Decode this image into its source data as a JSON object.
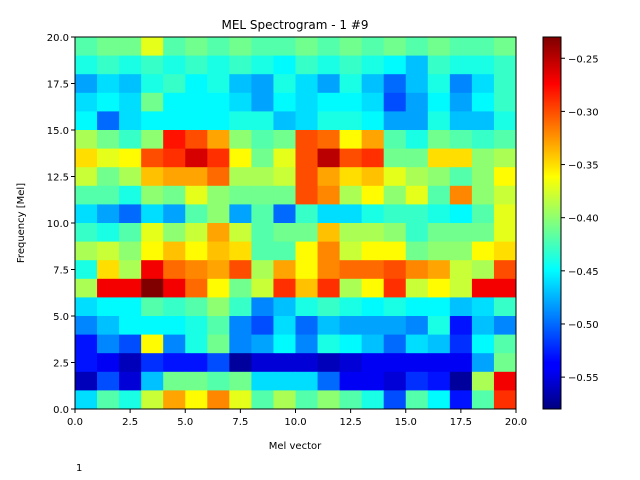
{
  "chart_data": {
    "type": "heatmap",
    "title": "MEL Spectrogram - 1 #9",
    "xlabel": "Mel vector",
    "ylabel": "Frequency [Mel]",
    "xlim": [
      0,
      20
    ],
    "ylim": [
      0,
      20
    ],
    "colormap": "jet",
    "vmin": -0.58,
    "vmax": -0.23,
    "x_ticks": [
      "0.0",
      "2.5",
      "5.0",
      "7.5",
      "10.0",
      "12.5",
      "15.0",
      "17.5",
      "20.0"
    ],
    "y_ticks": [
      "0.0",
      "2.5",
      "5.0",
      "7.5",
      "10.0",
      "12.5",
      "15.0",
      "17.5",
      "20.0"
    ],
    "colorbar_ticks": [
      "−0.25",
      "−0.30",
      "−0.35",
      "−0.40",
      "−0.45",
      "−0.50",
      "−0.55"
    ],
    "colorbar_tick_values": [
      -0.25,
      -0.3,
      -0.35,
      -0.4,
      -0.45,
      -0.5,
      -0.55
    ],
    "rows_top_to_bottom": [
      [
        -0.42,
        -0.41,
        -0.41,
        -0.37,
        -0.42,
        -0.41,
        -0.42,
        -0.41,
        -0.42,
        -0.42,
        -0.41,
        -0.42,
        -0.41,
        -0.42,
        -0.41,
        -0.42,
        -0.41,
        -0.42,
        -0.42,
        -0.41
      ],
      [
        -0.44,
        -0.43,
        -0.44,
        -0.43,
        -0.44,
        -0.43,
        -0.44,
        -0.43,
        -0.44,
        -0.45,
        -0.43,
        -0.44,
        -0.43,
        -0.44,
        -0.45,
        -0.47,
        -0.43,
        -0.44,
        -0.44,
        -0.43
      ],
      [
        -0.48,
        -0.46,
        -0.47,
        -0.44,
        -0.43,
        -0.45,
        -0.44,
        -0.47,
        -0.48,
        -0.44,
        -0.46,
        -0.48,
        -0.44,
        -0.47,
        -0.5,
        -0.47,
        -0.44,
        -0.49,
        -0.46,
        -0.43
      ],
      [
        -0.46,
        -0.45,
        -0.46,
        -0.41,
        -0.45,
        -0.45,
        -0.45,
        -0.46,
        -0.48,
        -0.45,
        -0.46,
        -0.45,
        -0.45,
        -0.46,
        -0.51,
        -0.48,
        -0.45,
        -0.48,
        -0.45,
        -0.43
      ],
      [
        -0.45,
        -0.5,
        -0.46,
        -0.45,
        -0.45,
        -0.45,
        -0.45,
        -0.44,
        -0.44,
        -0.47,
        -0.46,
        -0.44,
        -0.44,
        -0.45,
        -0.48,
        -0.48,
        -0.44,
        -0.47,
        -0.47,
        -0.44
      ],
      [
        -0.39,
        -0.41,
        -0.43,
        -0.4,
        -0.28,
        -0.3,
        -0.33,
        -0.4,
        -0.42,
        -0.41,
        -0.3,
        -0.31,
        -0.36,
        -0.33,
        -0.42,
        -0.44,
        -0.41,
        -0.42,
        -0.43,
        -0.42
      ],
      [
        -0.35,
        -0.37,
        -0.36,
        -0.3,
        -0.29,
        -0.26,
        -0.29,
        -0.36,
        -0.41,
        -0.37,
        -0.3,
        -0.25,
        -0.3,
        -0.29,
        -0.41,
        -0.41,
        -0.35,
        -0.35,
        -0.4,
        -0.39
      ],
      [
        -0.38,
        -0.41,
        -0.39,
        -0.34,
        -0.33,
        -0.33,
        -0.31,
        -0.39,
        -0.39,
        -0.38,
        -0.3,
        -0.33,
        -0.35,
        -0.34,
        -0.37,
        -0.39,
        -0.4,
        -0.42,
        -0.4,
        -0.36
      ],
      [
        -0.42,
        -0.42,
        -0.44,
        -0.4,
        -0.41,
        -0.37,
        -0.4,
        -0.41,
        -0.41,
        -0.41,
        -0.3,
        -0.32,
        -0.39,
        -0.36,
        -0.4,
        -0.37,
        -0.42,
        -0.32,
        -0.4,
        -0.38
      ],
      [
        -0.46,
        -0.48,
        -0.5,
        -0.46,
        -0.48,
        -0.42,
        -0.4,
        -0.48,
        -0.42,
        -0.5,
        -0.43,
        -0.46,
        -0.46,
        -0.44,
        -0.43,
        -0.43,
        -0.44,
        -0.45,
        -0.42,
        -0.37
      ],
      [
        -0.43,
        -0.44,
        -0.42,
        -0.37,
        -0.4,
        -0.38,
        -0.33,
        -0.38,
        -0.42,
        -0.41,
        -0.41,
        -0.34,
        -0.39,
        -0.39,
        -0.4,
        -0.43,
        -0.41,
        -0.41,
        -0.41,
        -0.37
      ],
      [
        -0.39,
        -0.38,
        -0.4,
        -0.36,
        -0.34,
        -0.36,
        -0.34,
        -0.35,
        -0.42,
        -0.42,
        -0.36,
        -0.32,
        -0.38,
        -0.36,
        -0.36,
        -0.41,
        -0.4,
        -0.4,
        -0.36,
        -0.35
      ],
      [
        -0.44,
        -0.35,
        -0.39,
        -0.27,
        -0.31,
        -0.32,
        -0.33,
        -0.3,
        -0.39,
        -0.33,
        -0.36,
        -0.32,
        -0.31,
        -0.31,
        -0.3,
        -0.32,
        -0.33,
        -0.38,
        -0.39,
        -0.3
      ],
      [
        -0.39,
        -0.27,
        -0.27,
        -0.23,
        -0.27,
        -0.31,
        -0.36,
        -0.41,
        -0.38,
        -0.29,
        -0.34,
        -0.29,
        -0.39,
        -0.36,
        -0.29,
        -0.38,
        -0.36,
        -0.38,
        -0.27,
        -0.27
      ],
      [
        -0.46,
        -0.45,
        -0.45,
        -0.42,
        -0.43,
        -0.42,
        -0.4,
        -0.43,
        -0.49,
        -0.47,
        -0.44,
        -0.43,
        -0.44,
        -0.45,
        -0.44,
        -0.45,
        -0.45,
        -0.47,
        -0.46,
        -0.43
      ],
      [
        -0.49,
        -0.47,
        -0.45,
        -0.45,
        -0.45,
        -0.44,
        -0.42,
        -0.49,
        -0.51,
        -0.46,
        -0.5,
        -0.47,
        -0.48,
        -0.48,
        -0.48,
        -0.49,
        -0.44,
        -0.53,
        -0.47,
        -0.49
      ],
      [
        -0.53,
        -0.49,
        -0.51,
        -0.36,
        -0.49,
        -0.44,
        -0.41,
        -0.49,
        -0.48,
        -0.45,
        -0.49,
        -0.44,
        -0.45,
        -0.47,
        -0.5,
        -0.46,
        -0.47,
        -0.52,
        -0.45,
        -0.42
      ],
      [
        -0.53,
        -0.54,
        -0.56,
        -0.52,
        -0.53,
        -0.53,
        -0.51,
        -0.57,
        -0.55,
        -0.55,
        -0.55,
        -0.56,
        -0.55,
        -0.54,
        -0.54,
        -0.54,
        -0.54,
        -0.54,
        -0.48,
        -0.41
      ],
      [
        -0.56,
        -0.51,
        -0.55,
        -0.47,
        -0.41,
        -0.41,
        -0.42,
        -0.41,
        -0.46,
        -0.46,
        -0.46,
        -0.5,
        -0.54,
        -0.54,
        -0.55,
        -0.52,
        -0.53,
        -0.57,
        -0.39,
        -0.27
      ],
      [
        -0.46,
        -0.42,
        -0.44,
        -0.38,
        -0.33,
        -0.36,
        -0.32,
        -0.37,
        -0.42,
        -0.39,
        -0.42,
        -0.4,
        -0.42,
        -0.44,
        -0.51,
        -0.42,
        -0.45,
        -0.53,
        -0.42,
        -0.29
      ]
    ]
  },
  "footer_text": "1"
}
